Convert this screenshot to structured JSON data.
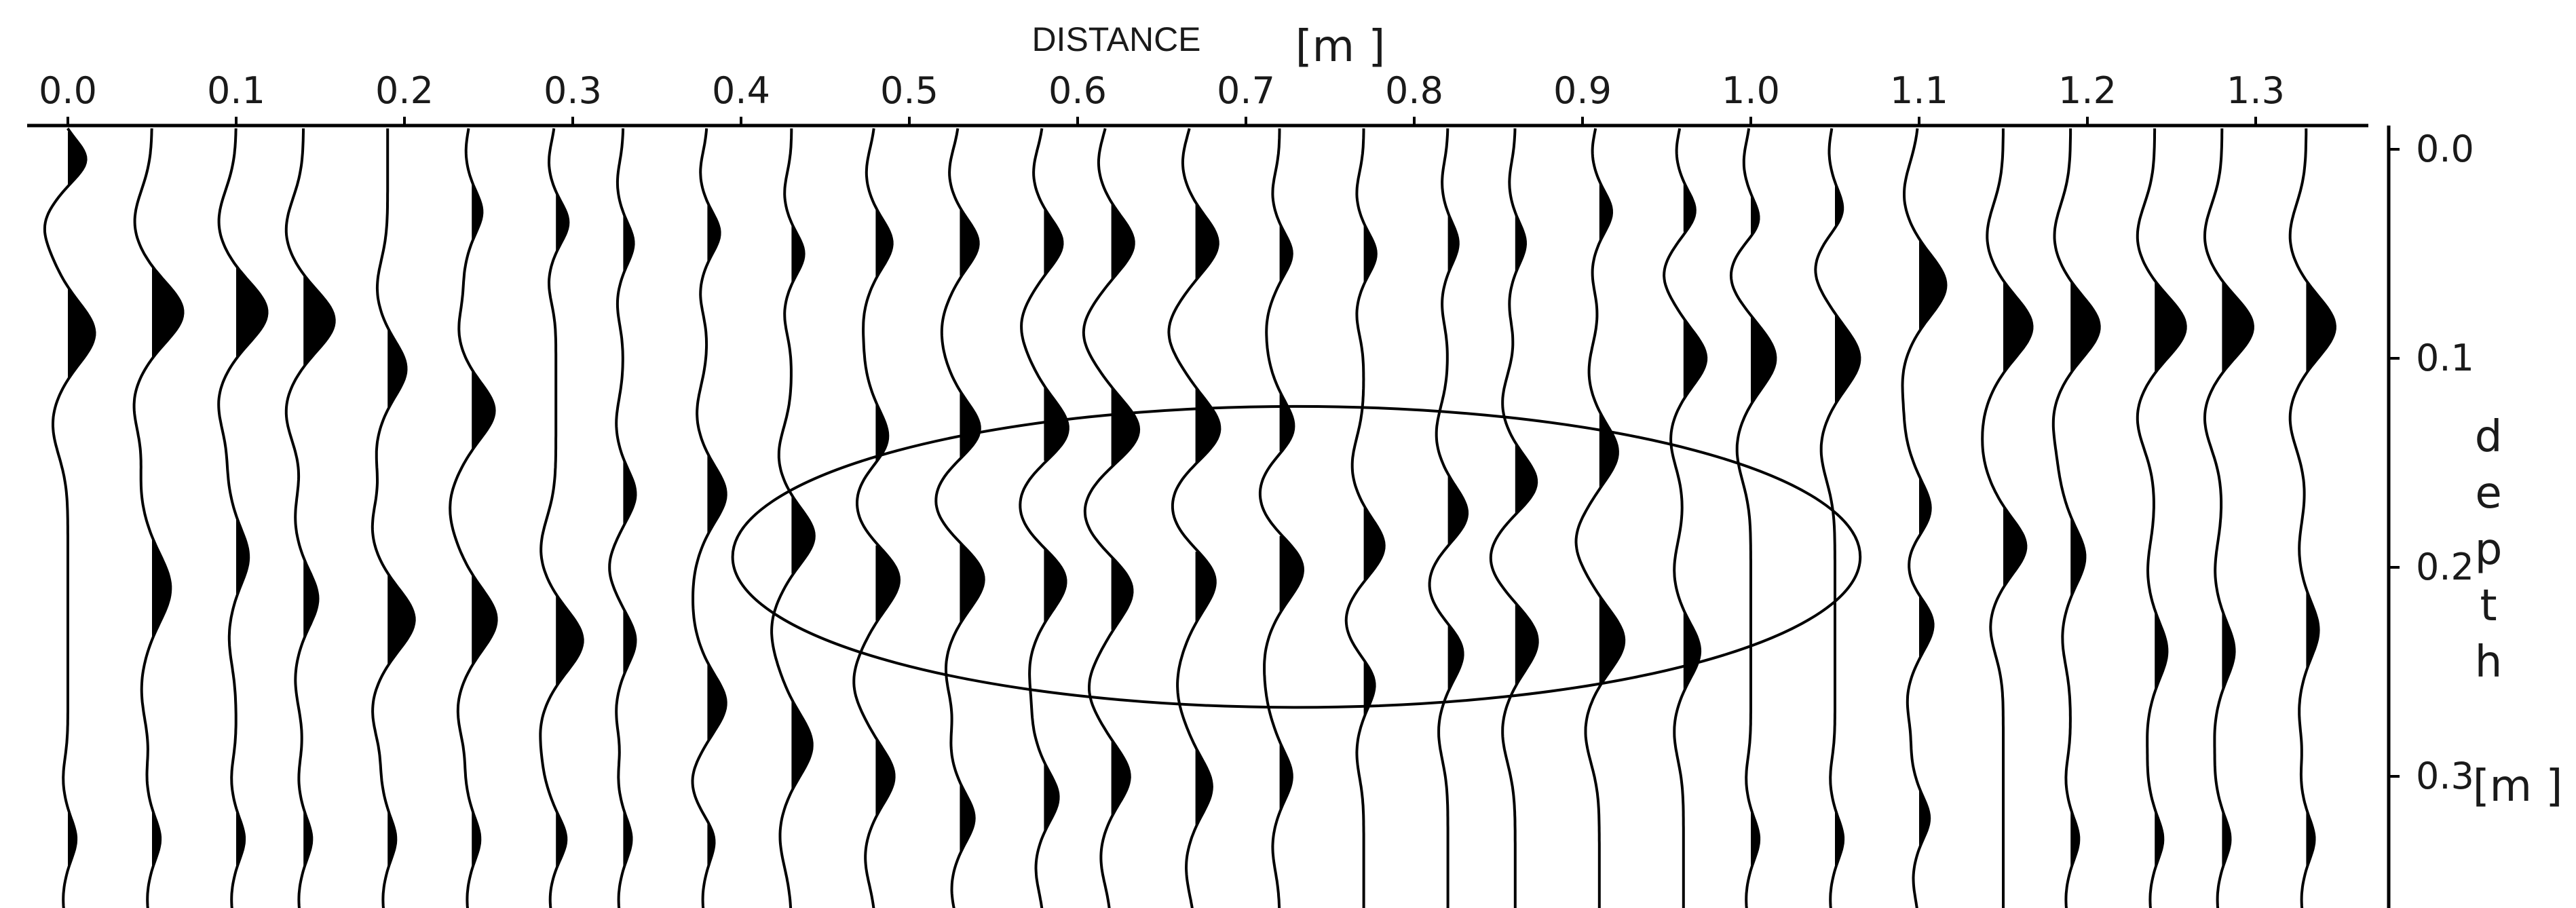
{
  "chart_data": {
    "type": "wiggle-trace seismogram",
    "x_axis": {
      "title": "DISTANCE",
      "unit": "[m ]",
      "ticks": [
        "0.0",
        "0.1",
        "0.2",
        "0.3",
        "0.4",
        "0.5",
        "0.6",
        "0.7",
        "0.8",
        "0.9",
        "1.0",
        "1.1",
        "1.2",
        "1.3"
      ],
      "range": [
        0.0,
        1.36
      ],
      "position": "top"
    },
    "y_axis": {
      "title": "depth",
      "unit": "[m ]",
      "ticks": [
        "0.0",
        "0.1",
        "0.2",
        "0.3"
      ],
      "range": [
        0.0,
        0.355
      ],
      "position": "right",
      "inverted": true
    },
    "traces": [
      {
        "x": 0.0,
        "peaks": [
          [
            0.005,
            0.45,
            0.012
          ],
          [
            0.088,
            0.65,
            0.018
          ],
          [
            0.33,
            0.2,
            0.012
          ]
        ]
      },
      {
        "x": 0.05,
        "peaks": [
          [
            0.078,
            0.75,
            0.018
          ],
          [
            0.21,
            0.45,
            0.02
          ],
          [
            0.33,
            0.2,
            0.012
          ]
        ]
      },
      {
        "x": 0.1,
        "peaks": [
          [
            0.078,
            0.75,
            0.018
          ],
          [
            0.195,
            0.3,
            0.016
          ],
          [
            0.33,
            0.2,
            0.012
          ]
        ]
      },
      {
        "x": 0.14,
        "peaks": [
          [
            0.082,
            0.75,
            0.018
          ],
          [
            0.215,
            0.35,
            0.016
          ],
          [
            0.33,
            0.2,
            0.012
          ]
        ]
      },
      {
        "x": 0.19,
        "peaks": [
          [
            0.105,
            0.45,
            0.016
          ],
          [
            0.225,
            0.65,
            0.018
          ],
          [
            0.33,
            0.2,
            0.012
          ]
        ]
      },
      {
        "x": 0.24,
        "peaks": [
          [
            0.03,
            0.25,
            0.012
          ],
          [
            0.125,
            0.55,
            0.016
          ],
          [
            0.225,
            0.6,
            0.018
          ],
          [
            0.33,
            0.2,
            0.012
          ]
        ]
      },
      {
        "x": 0.29,
        "peaks": [
          [
            0.035,
            0.3,
            0.012
          ],
          [
            0.235,
            0.65,
            0.018
          ],
          [
            0.33,
            0.25,
            0.012
          ]
        ]
      },
      {
        "x": 0.33,
        "peaks": [
          [
            0.045,
            0.25,
            0.012
          ],
          [
            0.165,
            0.3,
            0.014
          ],
          [
            0.235,
            0.3,
            0.014
          ],
          [
            0.33,
            0.2,
            0.012
          ]
        ]
      },
      {
        "x": 0.38,
        "peaks": [
          [
            0.04,
            0.3,
            0.012
          ],
          [
            0.165,
            0.45,
            0.016
          ],
          [
            0.265,
            0.45,
            0.016
          ],
          [
            0.33,
            0.2,
            0.012
          ]
        ]
      },
      {
        "x": 0.43,
        "peaks": [
          [
            0.05,
            0.3,
            0.012
          ],
          [
            0.185,
            0.55,
            0.016
          ],
          [
            0.285,
            0.5,
            0.018
          ]
        ]
      },
      {
        "x": 0.48,
        "peaks": [
          [
            0.045,
            0.4,
            0.014
          ],
          [
            0.14,
            0.4,
            0.016
          ],
          [
            0.205,
            0.6,
            0.018
          ],
          [
            0.3,
            0.45,
            0.016
          ]
        ]
      },
      {
        "x": 0.53,
        "peaks": [
          [
            0.045,
            0.45,
            0.014
          ],
          [
            0.135,
            0.55,
            0.016
          ],
          [
            0.205,
            0.6,
            0.018
          ],
          [
            0.32,
            0.35,
            0.014
          ]
        ]
      },
      {
        "x": 0.58,
        "peaks": [
          [
            0.045,
            0.45,
            0.014
          ],
          [
            0.135,
            0.65,
            0.018
          ],
          [
            0.205,
            0.6,
            0.018
          ],
          [
            0.31,
            0.35,
            0.014
          ]
        ]
      },
      {
        "x": 0.62,
        "peaks": [
          [
            0.045,
            0.55,
            0.016
          ],
          [
            0.135,
            0.7,
            0.018
          ],
          [
            0.21,
            0.55,
            0.018
          ],
          [
            0.3,
            0.45,
            0.016
          ]
        ]
      },
      {
        "x": 0.67,
        "peaks": [
          [
            0.045,
            0.55,
            0.016
          ],
          [
            0.135,
            0.65,
            0.018
          ],
          [
            0.205,
            0.55,
            0.018
          ],
          [
            0.305,
            0.4,
            0.016
          ]
        ]
      },
      {
        "x": 0.72,
        "peaks": [
          [
            0.05,
            0.3,
            0.012
          ],
          [
            0.135,
            0.45,
            0.016
          ],
          [
            0.2,
            0.6,
            0.018
          ],
          [
            0.3,
            0.3,
            0.014
          ]
        ]
      },
      {
        "x": 0.77,
        "peaks": [
          [
            0.05,
            0.3,
            0.012
          ],
          [
            0.19,
            0.5,
            0.016
          ],
          [
            0.255,
            0.3,
            0.014
          ]
        ]
      },
      {
        "x": 0.82,
        "peaks": [
          [
            0.045,
            0.25,
            0.012
          ],
          [
            0.175,
            0.5,
            0.016
          ],
          [
            0.24,
            0.4,
            0.016
          ]
        ]
      },
      {
        "x": 0.86,
        "peaks": [
          [
            0.045,
            0.25,
            0.012
          ],
          [
            0.16,
            0.55,
            0.016
          ],
          [
            0.235,
            0.55,
            0.018
          ]
        ]
      },
      {
        "x": 0.91,
        "peaks": [
          [
            0.03,
            0.3,
            0.012
          ],
          [
            0.145,
            0.45,
            0.016
          ],
          [
            0.235,
            0.6,
            0.018
          ]
        ]
      },
      {
        "x": 0.96,
        "peaks": [
          [
            0.03,
            0.3,
            0.012
          ],
          [
            0.1,
            0.55,
            0.016
          ],
          [
            0.24,
            0.4,
            0.016
          ]
        ]
      },
      {
        "x": 1.0,
        "peaks": [
          [
            0.035,
            0.3,
            0.012
          ],
          [
            0.1,
            0.6,
            0.018
          ],
          [
            0.33,
            0.2,
            0.012
          ]
        ]
      },
      {
        "x": 1.05,
        "peaks": [
          [
            0.03,
            0.25,
            0.012
          ],
          [
            0.1,
            0.6,
            0.018
          ],
          [
            0.33,
            0.2,
            0.012
          ]
        ]
      },
      {
        "x": 1.1,
        "peaks": [
          [
            0.065,
            0.65,
            0.018
          ],
          [
            0.175,
            0.45,
            0.016
          ],
          [
            0.225,
            0.5,
            0.016
          ],
          [
            0.32,
            0.25,
            0.012
          ]
        ]
      },
      {
        "x": 1.15,
        "peaks": [
          [
            0.085,
            0.7,
            0.018
          ],
          [
            0.19,
            0.55,
            0.016
          ]
        ]
      },
      {
        "x": 1.19,
        "peaks": [
          [
            0.085,
            0.7,
            0.018
          ],
          [
            0.195,
            0.35,
            0.016
          ],
          [
            0.33,
            0.2,
            0.012
          ]
        ]
      },
      {
        "x": 1.24,
        "peaks": [
          [
            0.085,
            0.75,
            0.018
          ],
          [
            0.24,
            0.3,
            0.016
          ],
          [
            0.33,
            0.2,
            0.012
          ]
        ]
      },
      {
        "x": 1.28,
        "peaks": [
          [
            0.085,
            0.75,
            0.018
          ],
          [
            0.24,
            0.3,
            0.016
          ],
          [
            0.33,
            0.2,
            0.012
          ]
        ]
      },
      {
        "x": 1.33,
        "peaks": [
          [
            0.085,
            0.7,
            0.018
          ],
          [
            0.23,
            0.3,
            0.016
          ],
          [
            0.33,
            0.2,
            0.012
          ]
        ]
      }
    ],
    "annotation": {
      "shape": "ellipse",
      "center_x": 0.73,
      "center_y": 0.195,
      "radius_x": 0.335,
      "radius_y": 0.072
    },
    "grid": false,
    "colors": {
      "trace": "#000000",
      "fill": "#000000",
      "background": "#ffffff"
    }
  }
}
